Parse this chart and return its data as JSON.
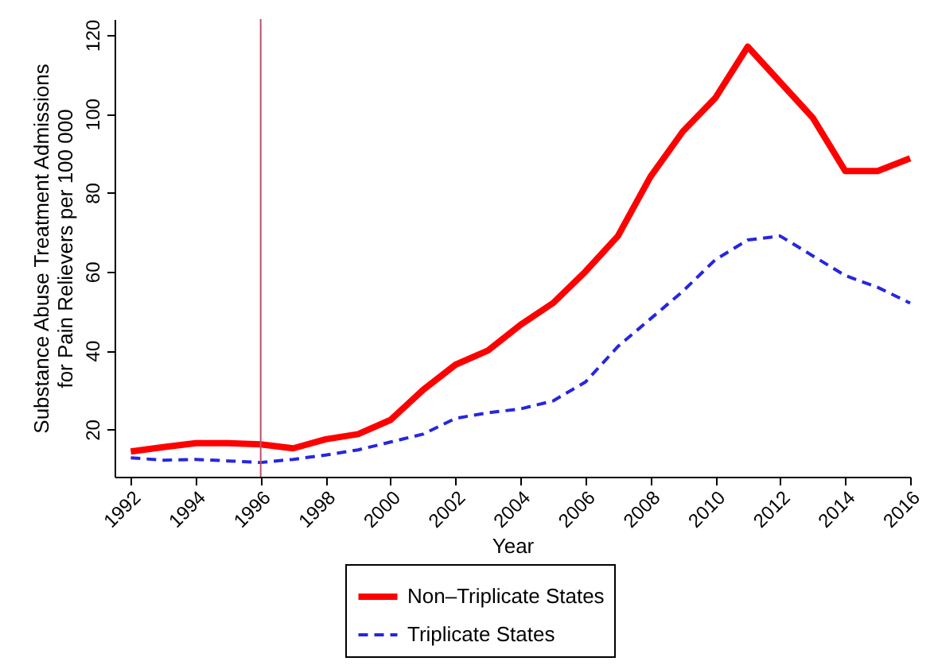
{
  "chart_data": {
    "type": "line",
    "xlabel": "Year",
    "ylabel": "Substance Abuse Treatment Admissions\nfor Pain Relievers per 100 000",
    "x": [
      1992,
      1993,
      1994,
      1995,
      1996,
      1997,
      1998,
      1999,
      2000,
      2001,
      2002,
      2003,
      2004,
      2005,
      2006,
      2007,
      2008,
      2009,
      2010,
      2011,
      2012,
      2013,
      2014,
      2015,
      2016
    ],
    "series": [
      {
        "name": "Non–Triplicate States",
        "color": "#ff0000",
        "line_style": "solid",
        "values": [
          14.4,
          15.5,
          16.5,
          16.5,
          16.2,
          15.2,
          17.5,
          18.8,
          22.4,
          30,
          36.4,
          40,
          46.5,
          52,
          60,
          69,
          84,
          95.5,
          104,
          117,
          108,
          99,
          85.5,
          85.5,
          88.7
        ]
      },
      {
        "name": "Triplicate States",
        "color": "#2626e0",
        "line_style": "dashed",
        "values": [
          12.8,
          12.2,
          12.4,
          12,
          11.6,
          12.4,
          13.5,
          14.8,
          16.8,
          18.8,
          22.8,
          24.2,
          25.2,
          27.2,
          32,
          41,
          48,
          55,
          63,
          68,
          69,
          64,
          59,
          56,
          52
        ]
      }
    ],
    "xlim": [
      1991.5,
      2016
    ],
    "xticks": [
      1992,
      1994,
      1996,
      1998,
      2000,
      2002,
      2004,
      2006,
      2008,
      2010,
      2012,
      2014,
      2016
    ],
    "ylim": [
      8,
      124
    ],
    "yticks": [
      20,
      40,
      60,
      80,
      100,
      120
    ],
    "ref_lines": [
      {
        "axis": "x",
        "value": 1996,
        "color": "#c0506a"
      }
    ],
    "grid": false,
    "legend": "bottom",
    "marker": "none"
  }
}
